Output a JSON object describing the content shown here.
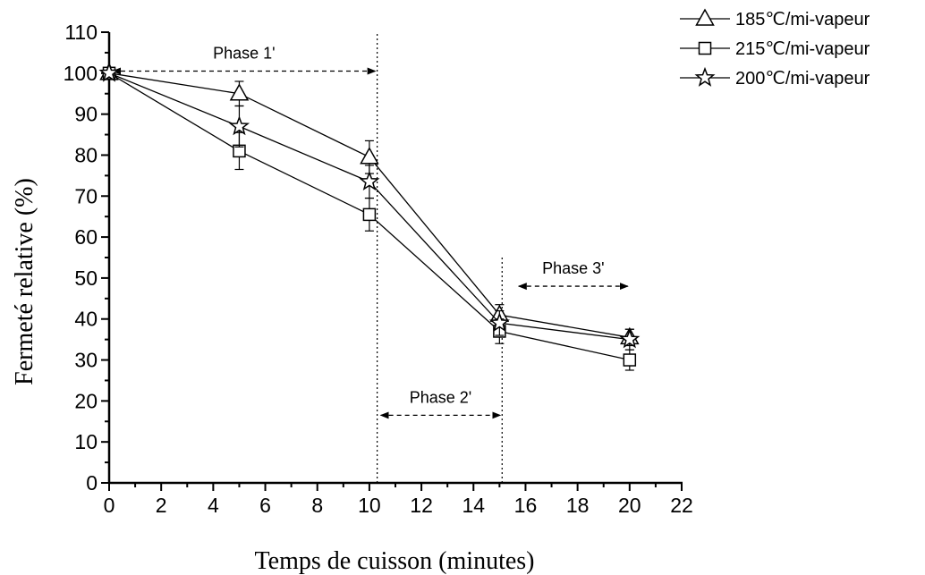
{
  "chart_data": {
    "type": "line",
    "xlabel": "Temps de cuisson (minutes)",
    "ylabel": "Fermeté relative (%)",
    "xlim": [
      0,
      22
    ],
    "ylim": [
      0,
      110
    ],
    "xticks": [
      0,
      2,
      4,
      6,
      8,
      10,
      12,
      14,
      16,
      18,
      20,
      22
    ],
    "yticks": [
      0,
      10,
      20,
      30,
      40,
      50,
      60,
      70,
      80,
      90,
      100,
      110
    ],
    "grid": false,
    "legend_position": "top-right",
    "x": [
      0,
      5,
      10,
      15,
      20
    ],
    "series": [
      {
        "name": "185℃/mi-vapeur",
        "marker": "triangle",
        "values": [
          100,
          95,
          79.5,
          41,
          35.5
        ],
        "errors": [
          0,
          3,
          4,
          2.5,
          2
        ]
      },
      {
        "name": "215℃/mi-vapeur",
        "marker": "square",
        "values": [
          100,
          81,
          65.5,
          37,
          30
        ],
        "errors": [
          0,
          4.5,
          4,
          3,
          2.5
        ]
      },
      {
        "name": "200℃/mi-vapeur",
        "marker": "star",
        "values": [
          100,
          87,
          73.5,
          39,
          35
        ],
        "errors": [
          0,
          5,
          4,
          3,
          2.5
        ]
      }
    ],
    "vlines": [
      10.3,
      15.1
    ],
    "annotations": [
      {
        "text": "Phase 1'",
        "x_start": 0,
        "x_end": 10.3,
        "y": 100.5
      },
      {
        "text": "Phase 2'",
        "x_start": 10.3,
        "x_end": 15.1,
        "y": 16.5
      },
      {
        "text": "Phase 3'",
        "x_start": 15.6,
        "x_end": 20,
        "y": 48
      }
    ]
  }
}
